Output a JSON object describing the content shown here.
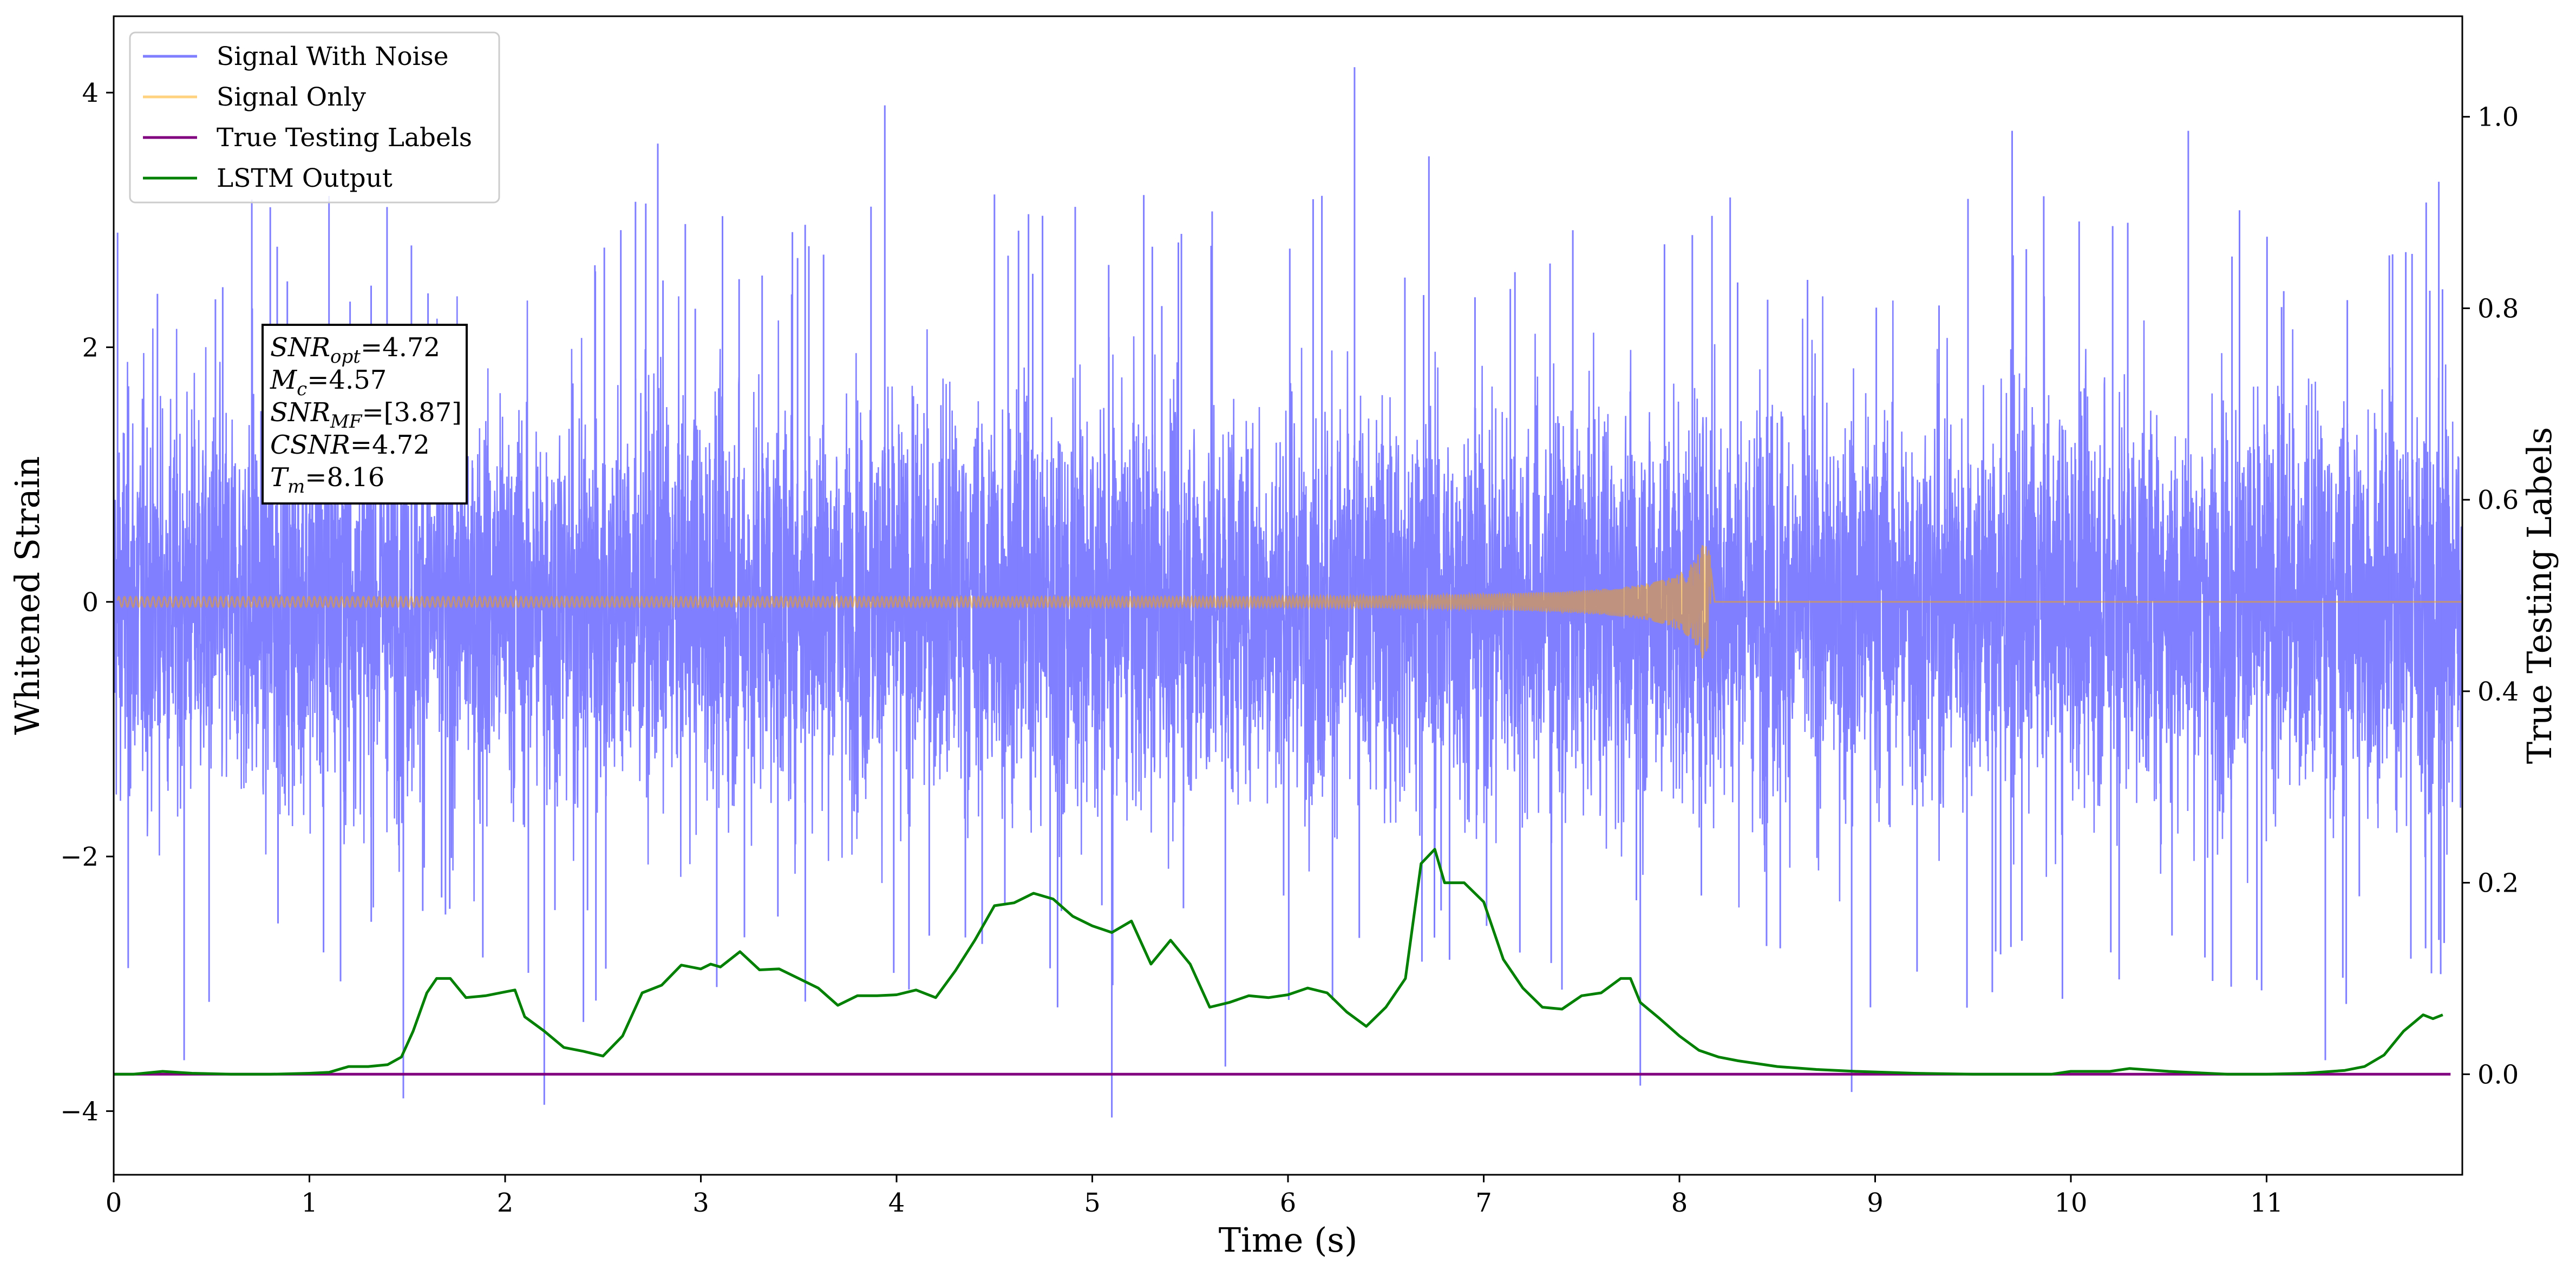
{
  "chart_data": {
    "type": "line",
    "xlabel": "Time (s)",
    "ylabel": "Whitened Strain",
    "ylabel_right": "True Testing Labels",
    "xlim": [
      0,
      12
    ],
    "ylim": [
      -4.5,
      4.6
    ],
    "ylim_right": [
      -0.105,
      1.105
    ],
    "x_ticks": [
      0,
      1,
      2,
      3,
      4,
      5,
      6,
      7,
      8,
      9,
      10,
      11
    ],
    "y_ticks": [
      -4,
      -2,
      0,
      2,
      4
    ],
    "y_ticks_right": [
      0.0,
      0.2,
      0.4,
      0.6,
      0.8,
      1.0
    ],
    "x_tick_labels": [
      "0",
      "1",
      "2",
      "3",
      "4",
      "5",
      "6",
      "7",
      "8",
      "9",
      "10",
      "11"
    ],
    "y_tick_labels": [
      "−4",
      "−2",
      "0",
      "2",
      "4"
    ],
    "y_tick_labels_right": [
      "0.0",
      "0.2",
      "0.4",
      "0.6",
      "0.8",
      "1.0"
    ],
    "grid": false,
    "legend_position": "top-left",
    "series": [
      {
        "name": "Signal With Noise",
        "color": "#7f7fff",
        "axis": "left",
        "note_values": "dense noise band roughly between -2.2 and 2.3 with spikes up to about 4.2 and down to about -4.1",
        "peaks": [
          {
            "x": 0.02,
            "y": 2.9
          },
          {
            "x": 0.36,
            "y": -3.6
          },
          {
            "x": 0.8,
            "y": 3.1
          },
          {
            "x": 1.48,
            "y": -3.9
          },
          {
            "x": 2.2,
            "y": -3.95
          },
          {
            "x": 2.4,
            "y": -3.3
          },
          {
            "x": 2.78,
            "y": 3.6
          },
          {
            "x": 3.94,
            "y": 3.9
          },
          {
            "x": 4.5,
            "y": 3.2
          },
          {
            "x": 5.1,
            "y": -4.05
          },
          {
            "x": 5.68,
            "y": -3.65
          },
          {
            "x": 6.34,
            "y": 4.2
          },
          {
            "x": 6.72,
            "y": 3.5
          },
          {
            "x": 7.8,
            "y": -3.8
          },
          {
            "x": 8.88,
            "y": -3.85
          },
          {
            "x": 9.7,
            "y": 3.7
          },
          {
            "x": 10.6,
            "y": 3.7
          },
          {
            "x": 11.3,
            "y": -3.6
          },
          {
            "x": 11.88,
            "y": 3.3
          }
        ]
      },
      {
        "name": "Signal Only",
        "color": "#ffa500",
        "axis": "left",
        "waveform": "chirp",
        "start_amplitude": 0.04,
        "merger_time": 8.16,
        "merger_amplitude": 0.45
      },
      {
        "name": "True Testing Labels",
        "color": "#800080",
        "axis": "right",
        "x": [
          0,
          11.94
        ],
        "y": [
          0.0,
          0.0
        ]
      },
      {
        "name": "LSTM Output",
        "color": "#008000",
        "axis": "right",
        "x": [
          0.0,
          0.1,
          0.25,
          0.4,
          0.6,
          0.8,
          1.0,
          1.1,
          1.2,
          1.3,
          1.4,
          1.47,
          1.53,
          1.6,
          1.65,
          1.72,
          1.8,
          1.9,
          2.0,
          2.05,
          2.1,
          2.2,
          2.3,
          2.4,
          2.5,
          2.6,
          2.7,
          2.8,
          2.9,
          3.0,
          3.05,
          3.1,
          3.2,
          3.3,
          3.4,
          3.5,
          3.6,
          3.7,
          3.8,
          3.9,
          4.0,
          4.1,
          4.2,
          4.3,
          4.4,
          4.5,
          4.6,
          4.7,
          4.8,
          4.9,
          5.0,
          5.1,
          5.2,
          5.3,
          5.4,
          5.5,
          5.6,
          5.7,
          5.8,
          5.9,
          6.0,
          6.1,
          6.2,
          6.3,
          6.4,
          6.5,
          6.6,
          6.68,
          6.75,
          6.8,
          6.9,
          7.0,
          7.1,
          7.2,
          7.3,
          7.4,
          7.5,
          7.6,
          7.7,
          7.75,
          7.8,
          7.9,
          8.0,
          8.1,
          8.2,
          8.3,
          8.5,
          8.7,
          8.9,
          9.2,
          9.5,
          9.8,
          9.9,
          10.0,
          10.2,
          10.3,
          10.5,
          10.8,
          11.0,
          11.2,
          11.4,
          11.5,
          11.6,
          11.7,
          11.8,
          11.85,
          11.9
        ],
        "y": [
          0.0,
          0.0,
          0.003,
          0.001,
          0.0,
          0.0,
          0.001,
          0.002,
          0.008,
          0.008,
          0.01,
          0.018,
          0.045,
          0.085,
          0.1,
          0.1,
          0.08,
          0.082,
          0.086,
          0.088,
          0.06,
          0.045,
          0.028,
          0.024,
          0.019,
          0.04,
          0.085,
          0.093,
          0.114,
          0.11,
          0.115,
          0.112,
          0.128,
          0.109,
          0.11,
          0.1,
          0.09,
          0.072,
          0.082,
          0.082,
          0.083,
          0.088,
          0.08,
          0.108,
          0.14,
          0.176,
          0.179,
          0.189,
          0.183,
          0.165,
          0.155,
          0.148,
          0.16,
          0.115,
          0.14,
          0.115,
          0.07,
          0.075,
          0.082,
          0.08,
          0.083,
          0.09,
          0.085,
          0.065,
          0.05,
          0.07,
          0.1,
          0.22,
          0.235,
          0.2,
          0.2,
          0.18,
          0.12,
          0.09,
          0.07,
          0.068,
          0.082,
          0.085,
          0.1,
          0.1,
          0.075,
          0.058,
          0.04,
          0.025,
          0.018,
          0.014,
          0.008,
          0.005,
          0.003,
          0.001,
          0.0,
          0.0,
          0.0,
          0.003,
          0.003,
          0.006,
          0.003,
          0.0,
          0.0,
          0.001,
          0.004,
          0.008,
          0.02,
          0.045,
          0.062,
          0.058,
          0.062
        ]
      }
    ],
    "annotation": {
      "lines": [
        {
          "main": "SNR",
          "sub": "opt",
          "value": "=4.72"
        },
        {
          "main": "M",
          "sub": "c",
          "value": "=4.57"
        },
        {
          "main": "SNR",
          "sub": "MF",
          "value": "=[3.87]"
        },
        {
          "main": "CSNR",
          "sub": "",
          "value": "=4.72"
        },
        {
          "main": "T",
          "sub": "m",
          "value": "=8.16"
        }
      ]
    }
  }
}
